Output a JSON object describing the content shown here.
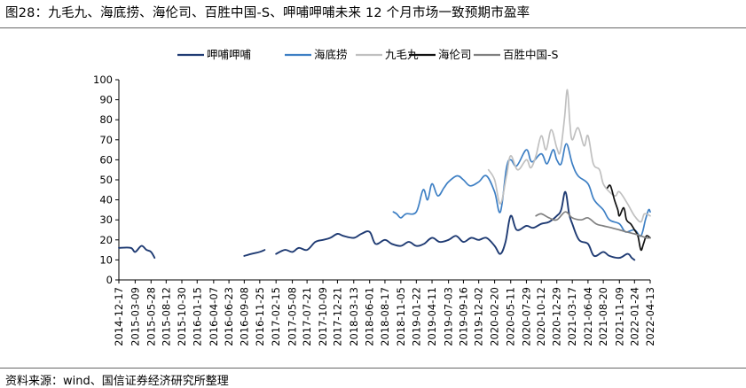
{
  "title": "图28：九毛九、海底捞、海伦司、百胜中国-S、呷哺呷哺未来 12 个月市场一致预期市盈率",
  "source": "资料来源：wind、国信证券经济研究所整理",
  "chart_data": {
    "type": "line",
    "ylim": [
      0,
      100
    ],
    "yticks": [
      0,
      10,
      20,
      30,
      40,
      50,
      60,
      70,
      80,
      90,
      100
    ],
    "xlim": [
      "2014-12-17",
      "2022-04-13"
    ],
    "xticks": [
      "2014-12-17",
      "2015-03-09",
      "2015-05-28",
      "2015-08-12",
      "2015-10-30",
      "2016-01-15",
      "2016-04-07",
      "2016-06-23",
      "2016-09-08",
      "2016-11-25",
      "2017-02-15",
      "2017-05-08",
      "2017-07-21",
      "2017-10-09",
      "2017-12-21",
      "2018-03-13",
      "2018-06-01",
      "2018-08-17",
      "2018-11-05",
      "2019-01-22",
      "2019-04-11",
      "2019-07-03",
      "2019-09-16",
      "2019-12-02",
      "2020-02-20",
      "2020-05-11",
      "2020-07-29",
      "2020-10-12",
      "2020-12-29",
      "2021-03-17",
      "2021-06-04",
      "2021-08-20",
      "2021-11-09",
      "2022-01-24",
      "2022-04-13"
    ],
    "legend_position": "top",
    "grid": false,
    "series": [
      {
        "name": "呷哺呷哺",
        "color": "#1f3b73",
        "segments": [
          [
            [
              "2014-12-17",
              16
            ],
            [
              "2015-02-15",
              16
            ],
            [
              "2015-03-09",
              14
            ],
            [
              "2015-04-10",
              17
            ],
            [
              "2015-05-05",
              15
            ],
            [
              "2015-05-28",
              14
            ],
            [
              "2015-06-15",
              11
            ]
          ],
          [
            [
              "2016-09-08",
              12
            ],
            [
              "2016-10-15",
              13
            ],
            [
              "2016-11-25",
              14
            ],
            [
              "2016-12-20",
              15
            ]
          ],
          [
            [
              "2017-02-15",
              13
            ],
            [
              "2017-04-01",
              15
            ],
            [
              "2017-05-08",
              14
            ],
            [
              "2017-06-10",
              16
            ],
            [
              "2017-07-21",
              15
            ],
            [
              "2017-09-01",
              19
            ],
            [
              "2017-10-09",
              20
            ],
            [
              "2017-11-15",
              21
            ],
            [
              "2017-12-21",
              23
            ],
            [
              "2018-01-20",
              22
            ],
            [
              "2018-03-13",
              21
            ],
            [
              "2018-04-20",
              23
            ],
            [
              "2018-06-01",
              24
            ],
            [
              "2018-07-01",
              18
            ],
            [
              "2018-08-17",
              20
            ],
            [
              "2018-09-20",
              18
            ],
            [
              "2018-11-05",
              17
            ],
            [
              "2018-12-15",
              19
            ],
            [
              "2019-01-22",
              17
            ],
            [
              "2019-03-01",
              18
            ],
            [
              "2019-04-11",
              21
            ],
            [
              "2019-05-20",
              19
            ],
            [
              "2019-07-03",
              20
            ],
            [
              "2019-08-10",
              22
            ],
            [
              "2019-09-16",
              19
            ],
            [
              "2019-10-25",
              21
            ],
            [
              "2019-12-02",
              20
            ],
            [
              "2020-01-10",
              21
            ],
            [
              "2020-02-20",
              17
            ],
            [
              "2020-03-20",
              13
            ],
            [
              "2020-04-15",
              19
            ],
            [
              "2020-05-11",
              32
            ],
            [
              "2020-06-10",
              25
            ],
            [
              "2020-07-29",
              27
            ],
            [
              "2020-09-01",
              26
            ],
            [
              "2020-10-12",
              28
            ],
            [
              "2020-11-20",
              29
            ],
            [
              "2020-12-29",
              32
            ],
            [
              "2021-01-20",
              35
            ],
            [
              "2021-02-10",
              44
            ],
            [
              "2021-03-01",
              33
            ],
            [
              "2021-03-17",
              28
            ],
            [
              "2021-04-20",
              20
            ],
            [
              "2021-06-04",
              18
            ],
            [
              "2021-07-05",
              12
            ],
            [
              "2021-08-20",
              14
            ],
            [
              "2021-09-20",
              12
            ],
            [
              "2021-11-09",
              11
            ],
            [
              "2021-12-20",
              13
            ],
            [
              "2022-01-10",
              11
            ],
            [
              "2022-01-24",
              10
            ]
          ]
        ]
      },
      {
        "name": "海底捞",
        "color": "#3d7fc4",
        "segments": [
          [
            [
              "2018-09-28",
              34
            ],
            [
              "2018-10-15",
              33
            ],
            [
              "2018-11-05",
              31
            ],
            [
              "2018-12-01",
              33
            ],
            [
              "2019-01-22",
              34
            ],
            [
              "2019-02-25",
              45
            ],
            [
              "2019-03-20",
              40
            ],
            [
              "2019-04-11",
              48
            ],
            [
              "2019-05-10",
              42
            ],
            [
              "2019-06-10",
              46
            ],
            [
              "2019-07-03",
              49
            ],
            [
              "2019-08-15",
              52
            ],
            [
              "2019-09-16",
              50
            ],
            [
              "2019-10-20",
              47
            ],
            [
              "2019-12-02",
              49
            ],
            [
              "2020-01-10",
              52
            ],
            [
              "2020-02-20",
              44
            ],
            [
              "2020-03-20",
              34
            ],
            [
              "2020-04-20",
              56
            ],
            [
              "2020-05-11",
              60
            ],
            [
              "2020-06-10",
              57
            ],
            [
              "2020-07-29",
              65
            ],
            [
              "2020-08-25",
              59
            ],
            [
              "2020-10-12",
              63
            ],
            [
              "2020-11-10",
              58
            ],
            [
              "2020-12-10",
              65
            ],
            [
              "2020-12-29",
              60
            ],
            [
              "2021-01-20",
              58
            ],
            [
              "2021-02-15",
              68
            ],
            [
              "2021-03-17",
              58
            ],
            [
              "2021-04-15",
              52
            ],
            [
              "2021-06-04",
              48
            ],
            [
              "2021-07-05",
              40
            ],
            [
              "2021-08-20",
              35
            ],
            [
              "2021-09-20",
              30
            ],
            [
              "2021-11-09",
              28
            ],
            [
              "2021-12-10",
              24
            ],
            [
              "2022-01-24",
              25
            ],
            [
              "2022-02-25",
              22
            ],
            [
              "2022-03-20",
              30
            ],
            [
              "2022-04-05",
              35
            ],
            [
              "2022-04-13",
              34
            ]
          ]
        ]
      },
      {
        "name": "九毛九",
        "color": "#c0c0c0",
        "segments": [
          [
            [
              "2020-01-20",
              55
            ],
            [
              "2020-02-20",
              50
            ],
            [
              "2020-03-20",
              38
            ],
            [
              "2020-04-20",
              52
            ],
            [
              "2020-05-11",
              62
            ],
            [
              "2020-06-15",
              55
            ],
            [
              "2020-07-29",
              60
            ],
            [
              "2020-08-20",
              56
            ],
            [
              "2020-09-15",
              62
            ],
            [
              "2020-10-12",
              72
            ],
            [
              "2020-11-05",
              65
            ],
            [
              "2020-12-01",
              75
            ],
            [
              "2020-12-29",
              66
            ],
            [
              "2021-01-15",
              64
            ],
            [
              "2021-02-05",
              80
            ],
            [
              "2021-02-20",
              95
            ],
            [
              "2021-03-05",
              78
            ],
            [
              "2021-03-17",
              70
            ],
            [
              "2021-04-15",
              76
            ],
            [
              "2021-05-15",
              67
            ],
            [
              "2021-06-04",
              72
            ],
            [
              "2021-07-01",
              58
            ],
            [
              "2021-08-01",
              55
            ],
            [
              "2021-08-20",
              48
            ],
            [
              "2021-09-20",
              44
            ],
            [
              "2021-10-20",
              42
            ],
            [
              "2021-11-09",
              44
            ],
            [
              "2021-12-20",
              38
            ],
            [
              "2022-01-24",
              32
            ],
            [
              "2022-02-25",
              29
            ],
            [
              "2022-03-15",
              33
            ],
            [
              "2022-04-13",
              32
            ]
          ]
        ]
      },
      {
        "name": "海伦司",
        "color": "#111111",
        "segments": [
          [
            [
              "2021-09-10",
              46
            ],
            [
              "2021-09-25",
              47
            ],
            [
              "2021-10-15",
              40
            ],
            [
              "2021-11-01",
              35
            ],
            [
              "2021-11-09",
              32
            ],
            [
              "2021-12-01",
              36
            ],
            [
              "2021-12-15",
              30
            ],
            [
              "2022-01-05",
              28
            ],
            [
              "2022-01-24",
              25
            ],
            [
              "2022-02-10",
              22
            ],
            [
              "2022-02-25",
              15
            ],
            [
              "2022-03-10",
              18
            ],
            [
              "2022-03-25",
              22
            ],
            [
              "2022-04-13",
              21
            ]
          ]
        ]
      },
      {
        "name": "百胜中国-S",
        "color": "#808080",
        "segments": [
          [
            [
              "2020-09-15",
              32
            ],
            [
              "2020-10-12",
              33
            ],
            [
              "2020-11-20",
              31
            ],
            [
              "2020-12-29",
              30
            ],
            [
              "2021-02-10",
              34
            ],
            [
              "2021-03-17",
              31
            ],
            [
              "2021-05-01",
              30
            ],
            [
              "2021-06-04",
              31
            ],
            [
              "2021-07-15",
              28
            ],
            [
              "2021-08-20",
              27
            ],
            [
              "2021-10-01",
              26
            ],
            [
              "2021-11-09",
              25
            ],
            [
              "2021-12-15",
              24
            ],
            [
              "2022-01-24",
              23
            ],
            [
              "2022-02-25",
              22
            ],
            [
              "2022-03-25",
              21
            ],
            [
              "2022-04-13",
              21
            ]
          ]
        ]
      }
    ]
  }
}
